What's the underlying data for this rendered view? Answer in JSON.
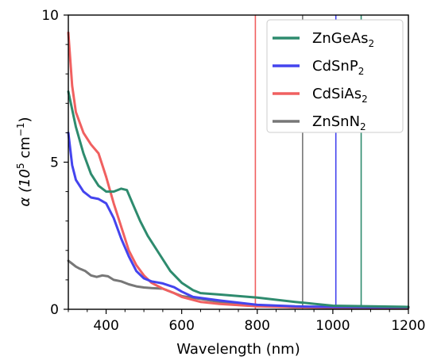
{
  "chart_data": {
    "type": "line",
    "xlabel": "Wavelength (nm)",
    "ylabel_parts": {
      "pre": "α (10",
      "sup": "5",
      "mid": " cm",
      "sup2": "−1",
      "post": ")"
    },
    "xlim": [
      300,
      1200
    ],
    "ylim": [
      0,
      10
    ],
    "xticks": [
      400,
      600,
      800,
      1000,
      1200
    ],
    "yticks": [
      0,
      5,
      10
    ],
    "x_minor_step": 50,
    "y_minor_step": 1,
    "legend_position": "top-right",
    "series": [
      {
        "name_base": "ZnGeAs",
        "name_sub": "2",
        "color": "#2e8b6e",
        "points": [
          [
            300,
            7.4
          ],
          [
            320,
            6.2
          ],
          [
            340,
            5.3
          ],
          [
            360,
            4.6
          ],
          [
            380,
            4.2
          ],
          [
            400,
            4.0
          ],
          [
            420,
            4.0
          ],
          [
            440,
            4.1
          ],
          [
            455,
            4.05
          ],
          [
            470,
            3.6
          ],
          [
            490,
            3.0
          ],
          [
            510,
            2.5
          ],
          [
            540,
            1.9
          ],
          [
            570,
            1.3
          ],
          [
            600,
            0.9
          ],
          [
            630,
            0.65
          ],
          [
            650,
            0.55
          ],
          [
            700,
            0.5
          ],
          [
            800,
            0.4
          ],
          [
            900,
            0.25
          ],
          [
            1000,
            0.12
          ],
          [
            1100,
            0.1
          ],
          [
            1200,
            0.08
          ]
        ],
        "band_edge": 1075
      },
      {
        "name_base": "CdSnP",
        "name_sub": "2",
        "color": "#4444ee",
        "points": [
          [
            300,
            6.0
          ],
          [
            310,
            4.9
          ],
          [
            320,
            4.4
          ],
          [
            340,
            4.0
          ],
          [
            360,
            3.8
          ],
          [
            380,
            3.75
          ],
          [
            400,
            3.6
          ],
          [
            420,
            3.1
          ],
          [
            440,
            2.4
          ],
          [
            460,
            1.8
          ],
          [
            480,
            1.3
          ],
          [
            500,
            1.05
          ],
          [
            520,
            0.95
          ],
          [
            550,
            0.88
          ],
          [
            580,
            0.75
          ],
          [
            600,
            0.6
          ],
          [
            630,
            0.42
          ],
          [
            700,
            0.3
          ],
          [
            800,
            0.15
          ],
          [
            900,
            0.1
          ],
          [
            1000,
            0.08
          ],
          [
            1100,
            0.07
          ],
          [
            1200,
            0.07
          ]
        ],
        "band_edge": 1008
      },
      {
        "name_base": "CdSiAs",
        "name_sub": "2",
        "color": "#f06060",
        "points": [
          [
            300,
            9.4
          ],
          [
            310,
            7.6
          ],
          [
            320,
            6.7
          ],
          [
            340,
            6.0
          ],
          [
            360,
            5.6
          ],
          [
            380,
            5.3
          ],
          [
            400,
            4.5
          ],
          [
            420,
            3.6
          ],
          [
            440,
            2.8
          ],
          [
            460,
            2.0
          ],
          [
            480,
            1.5
          ],
          [
            500,
            1.15
          ],
          [
            520,
            0.9
          ],
          [
            550,
            0.7
          ],
          [
            580,
            0.55
          ],
          [
            600,
            0.42
          ],
          [
            650,
            0.25
          ],
          [
            700,
            0.18
          ],
          [
            800,
            0.1
          ],
          [
            900,
            0.07
          ],
          [
            1000,
            0.06
          ],
          [
            1200,
            0.05
          ]
        ],
        "band_edge": 795
      },
      {
        "name_base": "ZnSnN",
        "name_sub": "2",
        "color": "#777777",
        "points": [
          [
            300,
            1.65
          ],
          [
            310,
            1.55
          ],
          [
            320,
            1.45
          ],
          [
            330,
            1.38
          ],
          [
            345,
            1.3
          ],
          [
            360,
            1.15
          ],
          [
            375,
            1.1
          ],
          [
            390,
            1.15
          ],
          [
            405,
            1.12
          ],
          [
            420,
            1.0
          ],
          [
            440,
            0.95
          ],
          [
            460,
            0.85
          ],
          [
            480,
            0.78
          ],
          [
            500,
            0.74
          ],
          [
            520,
            0.72
          ],
          [
            550,
            0.7
          ],
          [
            580,
            0.55
          ],
          [
            600,
            0.45
          ],
          [
            700,
            0.25
          ],
          [
            800,
            0.12
          ],
          [
            900,
            0.07
          ],
          [
            1000,
            0.05
          ],
          [
            1200,
            0.05
          ]
        ],
        "band_edge": 920
      }
    ]
  }
}
